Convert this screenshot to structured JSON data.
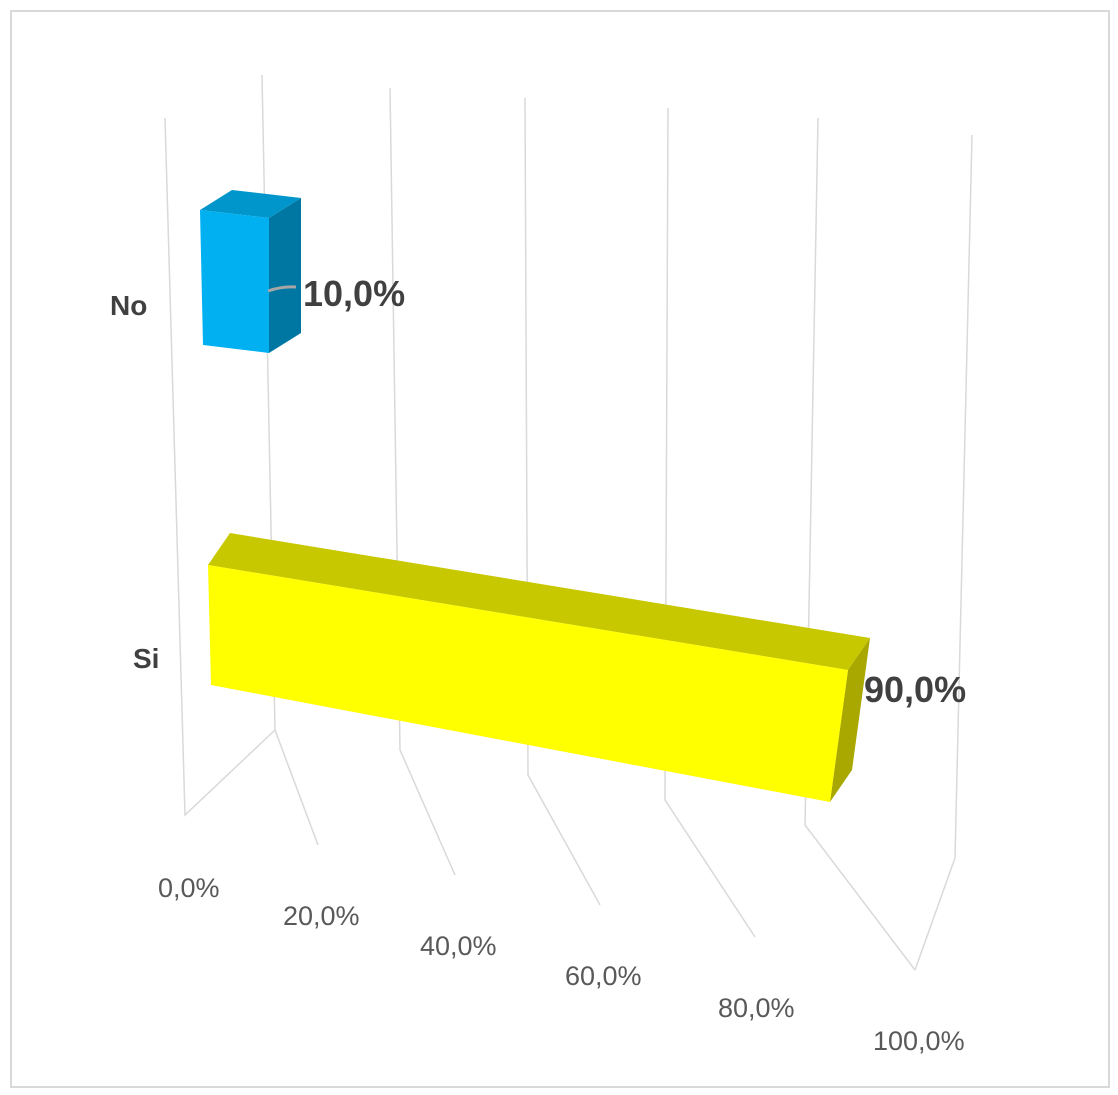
{
  "chart_data": {
    "type": "bar",
    "orientation": "horizontal",
    "style": "3d",
    "categories": [
      "No",
      "Si"
    ],
    "values": [
      10.0,
      90.0
    ],
    "data_labels": [
      "10,0%",
      "90,0%"
    ],
    "xlim": [
      0,
      100
    ],
    "x_ticks": [
      "0,0%",
      "20,0%",
      "40,0%",
      "60,0%",
      "80,0%",
      "100,0%"
    ],
    "grid": true,
    "legend": "none",
    "colors": {
      "No": {
        "front": "#00B0F0",
        "top": "#0096CC",
        "side": "#0077A3"
      },
      "Si": {
        "front": "#FFFF00",
        "top": "#C8C800",
        "side": "#A8A800"
      },
      "grid": "#d9d9d9"
    }
  }
}
